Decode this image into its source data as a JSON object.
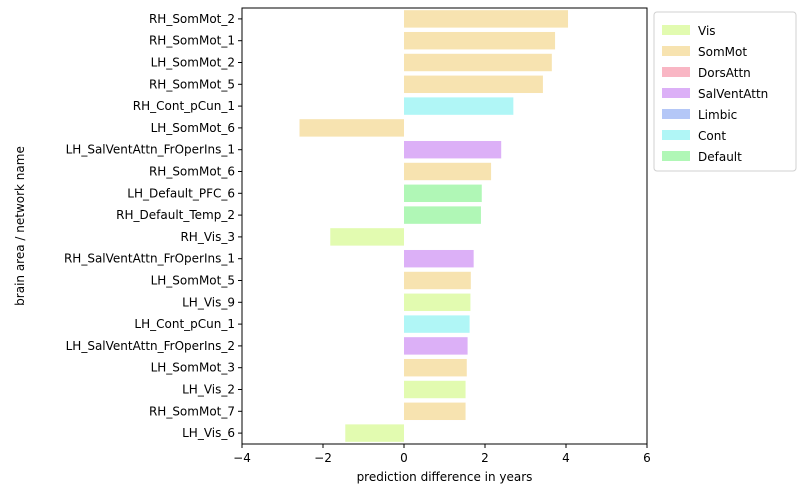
{
  "chart_data": {
    "type": "bar",
    "orientation": "horizontal",
    "xlabel": "prediction difference in years",
    "ylabel": "brain area / network name",
    "xlim": [
      -4,
      6
    ],
    "xticks": [
      -4,
      -2,
      0,
      2,
      4,
      6
    ],
    "tick_labels": [
      "−4",
      "−2",
      "0",
      "2",
      "4",
      "6"
    ],
    "grid": false,
    "legend_position": "outside-top-right",
    "categories": [
      "RH_SomMot_2",
      "RH_SomMot_1",
      "LH_SomMot_2",
      "RH_SomMot_5",
      "RH_Cont_pCun_1",
      "LH_SomMot_6",
      "LH_SalVentAttn_FrOperIns_1",
      "RH_SomMot_6",
      "LH_Default_PFC_6",
      "RH_Default_Temp_2",
      "RH_Vis_3",
      "RH_SalVentAttn_FrOperIns_1",
      "LH_SomMot_5",
      "LH_Vis_9",
      "LH_Cont_pCun_1",
      "LH_SalVentAttn_FrOperIns_2",
      "LH_SomMot_3",
      "LH_Vis_2",
      "RH_SomMot_7",
      "LH_Vis_6"
    ],
    "values": [
      4.05,
      3.73,
      3.65,
      3.43,
      2.7,
      -2.58,
      2.4,
      2.15,
      1.92,
      1.9,
      -1.82,
      1.72,
      1.65,
      1.64,
      1.62,
      1.57,
      1.55,
      1.52,
      1.52,
      -1.45
    ],
    "networks": [
      "SomMot",
      "SomMot",
      "SomMot",
      "SomMot",
      "Cont",
      "SomMot",
      "SalVentAttn",
      "SomMot",
      "Default",
      "Default",
      "Vis",
      "SalVentAttn",
      "SomMot",
      "Vis",
      "Cont",
      "SalVentAttn",
      "SomMot",
      "Vis",
      "SomMot",
      "Vis"
    ],
    "legend": [
      {
        "name": "Vis",
        "color": "#e2fbb0"
      },
      {
        "name": "SomMot",
        "color": "#f7e3b0"
      },
      {
        "name": "DorsAttn",
        "color": "#f9b6c4"
      },
      {
        "name": "SalVentAttn",
        "color": "#dcb0f7"
      },
      {
        "name": "Limbic",
        "color": "#b4c7f7"
      },
      {
        "name": "Cont",
        "color": "#b0f6f6"
      },
      {
        "name": "Default",
        "color": "#b0f7b6"
      }
    ]
  }
}
